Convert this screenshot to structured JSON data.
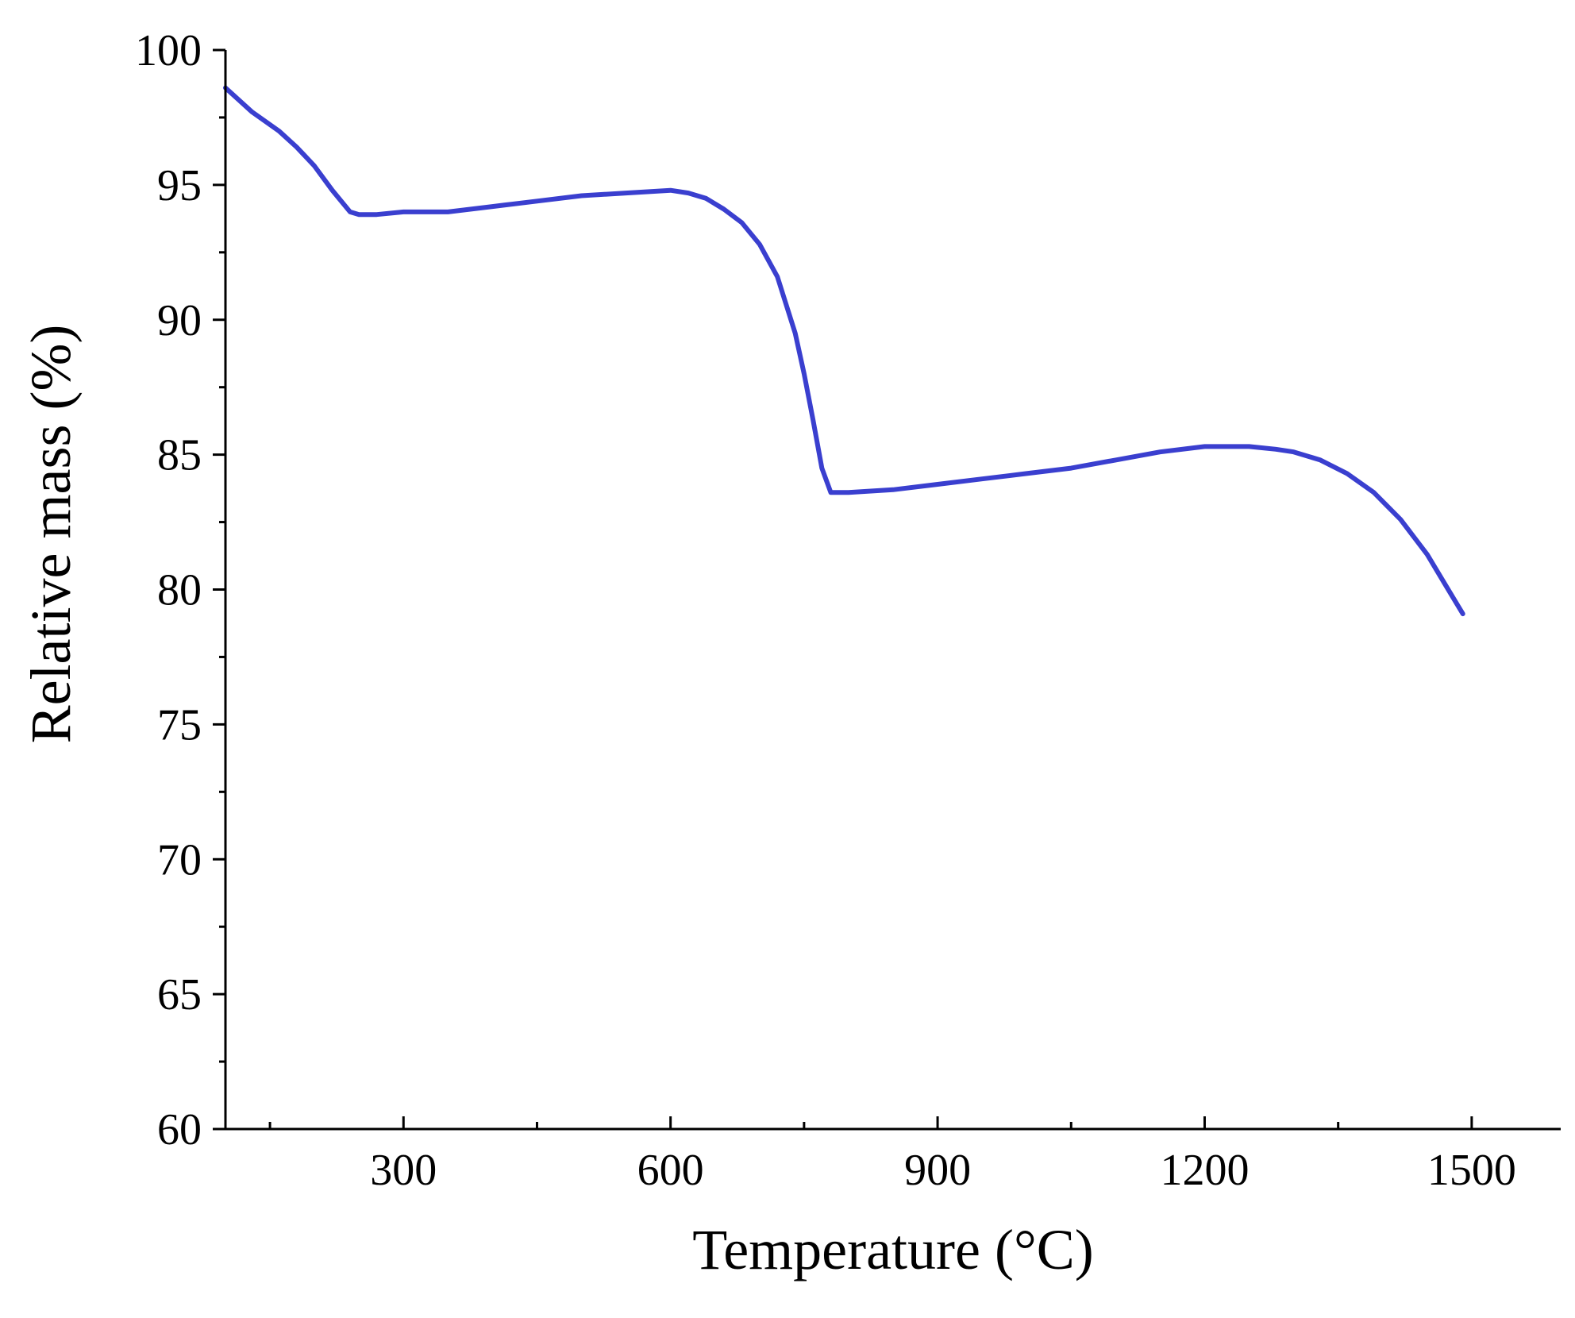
{
  "chart_data": {
    "type": "line",
    "title": "",
    "xlabel": "Temperature (°C)",
    "ylabel": "Relative mass (%)",
    "xlim": [
      100,
      1600
    ],
    "ylim": [
      60,
      100
    ],
    "x_ticks": [
      300,
      600,
      900,
      1200,
      1500
    ],
    "x_tick_labels": [
      "300",
      "600",
      "900",
      "1200",
      "1500"
    ],
    "x_minor_ticks": [
      150,
      450,
      750,
      1050,
      1350
    ],
    "y_ticks": [
      60,
      65,
      70,
      75,
      80,
      85,
      90,
      95,
      100
    ],
    "y_tick_labels": [
      "60",
      "65",
      "70",
      "75",
      "80",
      "85",
      "90",
      "95",
      "100"
    ],
    "y_minor_ticks": [
      62.5,
      67.5,
      72.5,
      77.5,
      82.5,
      87.5,
      92.5,
      97.5
    ],
    "grid": false,
    "legend": "none",
    "series": [
      {
        "color": "#3a3fcf",
        "x": [
          100,
          130,
          160,
          180,
          200,
          220,
          240,
          250,
          270,
          300,
          350,
          400,
          450,
          500,
          550,
          600,
          620,
          640,
          660,
          680,
          700,
          720,
          740,
          750,
          760,
          770,
          780,
          790,
          800,
          850,
          900,
          950,
          1000,
          1050,
          1100,
          1150,
          1200,
          1250,
          1280,
          1300,
          1330,
          1360,
          1390,
          1420,
          1450,
          1470,
          1490
        ],
        "y": [
          98.6,
          97.7,
          97.0,
          96.4,
          95.7,
          94.8,
          94.0,
          93.9,
          93.9,
          94.0,
          94.0,
          94.2,
          94.4,
          94.6,
          94.7,
          94.8,
          94.7,
          94.5,
          94.1,
          93.6,
          92.8,
          91.6,
          89.5,
          88.0,
          86.3,
          84.5,
          83.6,
          83.6,
          83.6,
          83.7,
          83.9,
          84.1,
          84.3,
          84.5,
          84.8,
          85.1,
          85.3,
          85.3,
          85.2,
          85.1,
          84.8,
          84.3,
          83.6,
          82.6,
          81.3,
          80.2,
          79.1
        ]
      }
    ]
  }
}
